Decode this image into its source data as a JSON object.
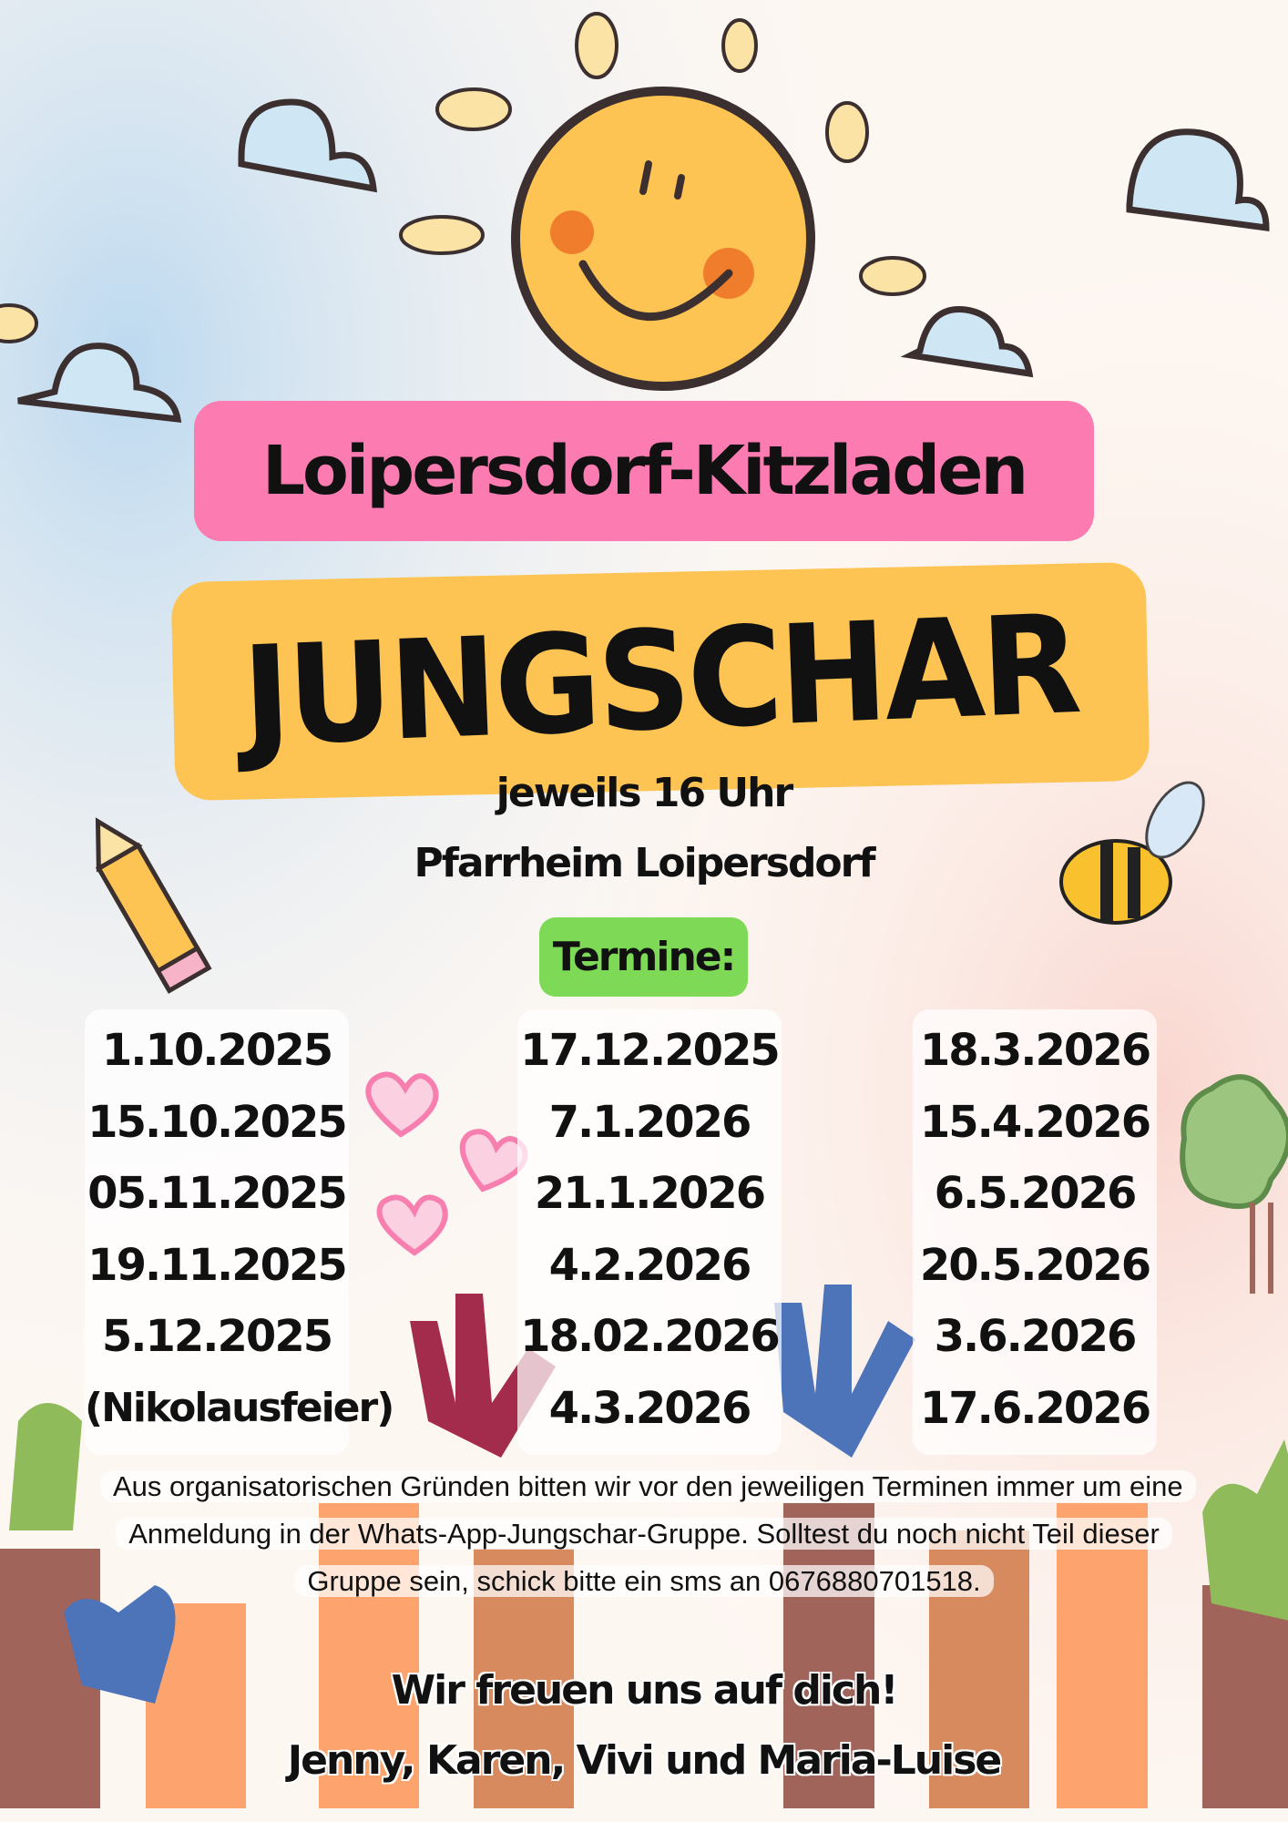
{
  "colors": {
    "pink_banner": "#fc7bb0",
    "yellow_banner": "#fdc453",
    "termine_badge": "#7ed957",
    "sun": "#fdc453"
  },
  "header": {
    "location": "Loipersdorf-Kitzladen",
    "title": "JUNGSCHAR"
  },
  "info": {
    "time": "jeweils 16 Uhr",
    "place": "Pfarrheim Loipersdorf"
  },
  "termine_label": "Termine:",
  "dates": {
    "column_1": [
      "1.10.2025",
      "15.10.2025",
      "05.11.2025",
      "19.11.2025",
      "5.12.2025",
      "(Nikolausfeier)"
    ],
    "column_2": [
      "17.12.2025",
      "7.1.2026",
      "21.1.2026",
      "4.2.2026",
      "18.02.2026",
      "4.3.2026"
    ],
    "column_3": [
      "18.3.2026",
      "15.4.2026",
      "6.5.2026",
      "20.5.2026",
      "3.6.2026",
      "17.6.2026"
    ]
  },
  "notice": "Aus organisatorischen Gründen bitten wir vor den jeweiligen Terminen immer um eine Anmeldung in der Whats-App-Jungschar-Gruppe. Solltest du noch nicht Teil dieser Gruppe sein, schick bitte ein sms an 0676880701518.",
  "closing": {
    "greeting": "Wir freuen uns auf dich!",
    "signature": "Jenny, Karen, Vivi und Maria-Luise"
  },
  "decorations": [
    "sun-icon",
    "cloud-icon",
    "bee-icon",
    "pencil-icon",
    "heart-icon",
    "tree-icon",
    "painted-hands-illustration"
  ]
}
